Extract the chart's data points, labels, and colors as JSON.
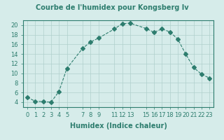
{
  "x": [
    0,
    1,
    2,
    3,
    4,
    5,
    7,
    8,
    9,
    11,
    12,
    13,
    15,
    16,
    17,
    18,
    19,
    20,
    21,
    22,
    23
  ],
  "y": [
    5,
    4.2,
    4.1,
    4,
    6.2,
    11,
    15.2,
    16.5,
    17.3,
    19.2,
    20.3,
    20.4,
    19.3,
    18.5,
    19.2,
    18.6,
    17.1,
    14,
    11.2,
    9.8,
    9
  ],
  "line_color": "#2d7d6e",
  "marker": "D",
  "marker_size": 3,
  "line_width": 0.8,
  "title": "Courbe de l'humidex pour Kongsberg Iv",
  "xlabel": "Humidex (Indice chaleur)",
  "xlim": [
    -0.5,
    23.5
  ],
  "ylim": [
    3,
    21
  ],
  "yticks": [
    4,
    6,
    8,
    10,
    12,
    14,
    16,
    18,
    20
  ],
  "xticks": [
    0,
    1,
    2,
    3,
    4,
    5,
    7,
    8,
    9,
    11,
    12,
    13,
    15,
    16,
    17,
    18,
    19,
    20,
    21,
    22,
    23
  ],
  "xtick_labels": [
    "0",
    "1",
    "2",
    "3",
    "4",
    "5",
    "7",
    "8",
    "9",
    "11",
    "12",
    "13",
    "15",
    "16",
    "17",
    "18",
    "19",
    "20",
    "21",
    "22",
    "23"
  ],
  "bg_color": "#d6ecea",
  "grid_color": "#b0d0cc",
  "title_fontsize": 7,
  "tick_fontsize": 6,
  "xlabel_fontsize": 7
}
